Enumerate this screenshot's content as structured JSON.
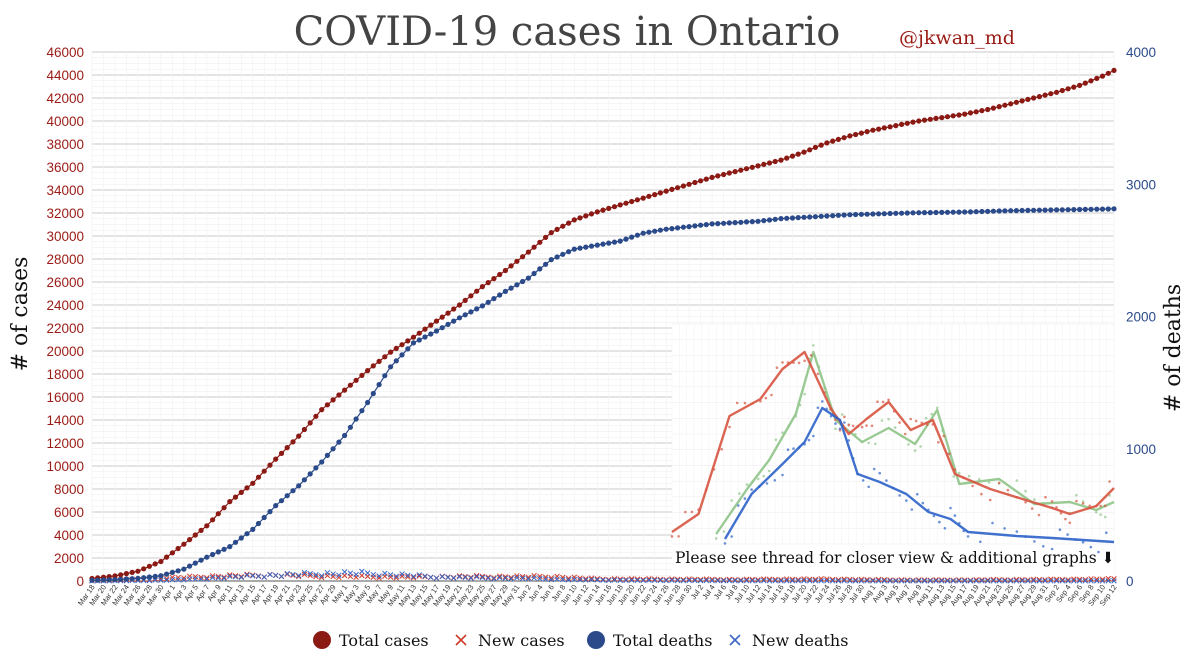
{
  "chart_data": {
    "type": "line",
    "title": "COVID-19 cases in Ontario",
    "author_handle": "@jkwan_md",
    "ylabel": "# of cases",
    "y2label": "# of deaths",
    "ylim": [
      0,
      46000
    ],
    "y2lim": [
      0,
      4000
    ],
    "yticks": [
      "0",
      "2000",
      "4000",
      "6000",
      "8000",
      "10000",
      "12000",
      "14000",
      "16000",
      "18000",
      "20000",
      "22000",
      "24000",
      "26000",
      "28000",
      "30000",
      "32000",
      "34000",
      "36000",
      "38000",
      "40000",
      "42000",
      "44000",
      "46000"
    ],
    "y2ticks": [
      "0",
      "1000",
      "2000",
      "3000",
      "4000"
    ],
    "x_start": "2020-03-18",
    "x_end": "2020-09-12",
    "xticks": [
      "Mar 18",
      "Mar 20",
      "Mar 22",
      "Mar 24",
      "Mar 26",
      "Mar 28",
      "Mar 30",
      "Apr 1",
      "Apr 3",
      "Apr 5",
      "Apr 7",
      "Apr 9",
      "Apr 11",
      "Apr 13",
      "Apr 15",
      "Apr 17",
      "Apr 19",
      "Apr 21",
      "Apr 23",
      "Apr 25",
      "Apr 27",
      "Apr 29",
      "May 1",
      "May 3",
      "May 5",
      "May 7",
      "May 9",
      "May 11",
      "May 13",
      "May 15",
      "May 17",
      "May 19",
      "May 21",
      "May 23",
      "May 25",
      "May 27",
      "May 29",
      "May 31",
      "Jun 2",
      "Jun 4",
      "Jun 6",
      "Jun 8",
      "Jun 10",
      "Jun 12",
      "Jun 14",
      "Jun 16",
      "Jun 18",
      "Jun 20",
      "Jun 22",
      "Jun 24",
      "Jun 26",
      "Jun 28",
      "Jun 30",
      "Jul 2",
      "Jul 4",
      "Jul 6",
      "Jul 8",
      "Jul 10",
      "Jul 12",
      "Jul 14",
      "Jul 16",
      "Jul 18",
      "Jul 20",
      "Jul 22",
      "Jul 24",
      "Jul 26",
      "Jul 28",
      "Jul 30",
      "Aug 1",
      "Aug 3",
      "Aug 5",
      "Aug 7",
      "Aug 9",
      "Aug 11",
      "Aug 13",
      "Aug 15",
      "Aug 17",
      "Aug 19",
      "Aug 21",
      "Aug 23",
      "Aug 25",
      "Aug 27",
      "Aug 29",
      "Aug 31",
      "Sep 2",
      "Sep 4",
      "Sep 6",
      "Sep 8",
      "Sep 10",
      "Sep 12"
    ],
    "series": [
      {
        "name": "Total cases",
        "axis": "left",
        "color": "#8b1a14",
        "marker": "circle",
        "points": [
          [
            "Mar 18",
            220
          ],
          [
            "Mar 22",
            440
          ],
          [
            "Mar 26",
            850
          ],
          [
            "Mar 30",
            1700
          ],
          [
            "Apr 3",
            3200
          ],
          [
            "Apr 7",
            4800
          ],
          [
            "Apr 11",
            6900
          ],
          [
            "Apr 15",
            8500
          ],
          [
            "Apr 19",
            10600
          ],
          [
            "Apr 23",
            12600
          ],
          [
            "Apr 27",
            14900
          ],
          [
            "May 1",
            16600
          ],
          [
            "May 5",
            18300
          ],
          [
            "May 9",
            19900
          ],
          [
            "May 13",
            21200
          ],
          [
            "May 17",
            22600
          ],
          [
            "May 21",
            24000
          ],
          [
            "May 25",
            25600
          ],
          [
            "May 29",
            27000
          ],
          [
            "Jun 2",
            28600
          ],
          [
            "Jun 6",
            30300
          ],
          [
            "Jun 10",
            31400
          ],
          [
            "Jun 14",
            32100
          ],
          [
            "Jun 18",
            32700
          ],
          [
            "Jun 22",
            33300
          ],
          [
            "Jun 26",
            33900
          ],
          [
            "Jun 30",
            34500
          ],
          [
            "Jul 4",
            35100
          ],
          [
            "Jul 8",
            35600
          ],
          [
            "Jul 12",
            36100
          ],
          [
            "Jul 16",
            36600
          ],
          [
            "Jul 20",
            37300
          ],
          [
            "Jul 24",
            38100
          ],
          [
            "Jul 28",
            38700
          ],
          [
            "Aug 1",
            39200
          ],
          [
            "Aug 5",
            39600
          ],
          [
            "Aug 9",
            40000
          ],
          [
            "Aug 13",
            40300
          ],
          [
            "Aug 17",
            40600
          ],
          [
            "Aug 21",
            41000
          ],
          [
            "Aug 25",
            41500
          ],
          [
            "Aug 29",
            42000
          ],
          [
            "Sep 2",
            42500
          ],
          [
            "Sep 6",
            43100
          ],
          [
            "Sep 10",
            43900
          ],
          [
            "Sep 12",
            44400
          ]
        ]
      },
      {
        "name": "Total deaths",
        "axis": "right",
        "color": "#2b4a8a",
        "marker": "circle",
        "points": [
          [
            "Mar 18",
            5
          ],
          [
            "Mar 22",
            10
          ],
          [
            "Mar 26",
            20
          ],
          [
            "Mar 30",
            40
          ],
          [
            "Apr 3",
            90
          ],
          [
            "Apr 7",
            180
          ],
          [
            "Apr 11",
            260
          ],
          [
            "Apr 15",
            390
          ],
          [
            "Apr 19",
            570
          ],
          [
            "Apr 23",
            720
          ],
          [
            "Apr 27",
            900
          ],
          [
            "May 1",
            1100
          ],
          [
            "May 5",
            1350
          ],
          [
            "May 9",
            1620
          ],
          [
            "May 13",
            1800
          ],
          [
            "May 17",
            1890
          ],
          [
            "May 21",
            1990
          ],
          [
            "May 25",
            2080
          ],
          [
            "May 29",
            2190
          ],
          [
            "Jun 2",
            2290
          ],
          [
            "Jun 6",
            2430
          ],
          [
            "Jun 10",
            2510
          ],
          [
            "Jun 14",
            2540
          ],
          [
            "Jun 18",
            2570
          ],
          [
            "Jun 22",
            2630
          ],
          [
            "Jun 26",
            2660
          ],
          [
            "Jun 30",
            2680
          ],
          [
            "Jul 4",
            2700
          ],
          [
            "Jul 8",
            2710
          ],
          [
            "Jul 12",
            2720
          ],
          [
            "Jul 16",
            2740
          ],
          [
            "Jul 20",
            2750
          ],
          [
            "Jul 24",
            2760
          ],
          [
            "Jul 28",
            2770
          ],
          [
            "Aug 1",
            2775
          ],
          [
            "Aug 5",
            2780
          ],
          [
            "Aug 9",
            2785
          ],
          [
            "Aug 13",
            2787
          ],
          [
            "Aug 17",
            2790
          ],
          [
            "Aug 21",
            2795
          ],
          [
            "Aug 25",
            2800
          ],
          [
            "Aug 29",
            2803
          ],
          [
            "Sep 2",
            2806
          ],
          [
            "Sep 6",
            2809
          ],
          [
            "Sep 10",
            2812
          ],
          [
            "Sep 12",
            2814
          ]
        ]
      },
      {
        "name": "New cases",
        "axis": "left",
        "color": "#d23a28",
        "marker": "x",
        "points": [
          [
            "Mar 18",
            50
          ],
          [
            "Mar 26",
            120
          ],
          [
            "Apr 3",
            320
          ],
          [
            "Apr 11",
            450
          ],
          [
            "Apr 19",
            520
          ],
          [
            "Apr 27",
            430
          ],
          [
            "May 5",
            380
          ],
          [
            "May 13",
            340
          ],
          [
            "May 21",
            380
          ],
          [
            "May 29",
            380
          ],
          [
            "Jun 6",
            380
          ],
          [
            "Jun 14",
            180
          ],
          [
            "Jun 22",
            160
          ],
          [
            "Jun 30",
            150
          ],
          [
            "Jul 8",
            120
          ],
          [
            "Jul 16",
            150
          ],
          [
            "Jul 24",
            160
          ],
          [
            "Aug 1",
            110
          ],
          [
            "Aug 9",
            80
          ],
          [
            "Aug 17",
            90
          ],
          [
            "Aug 25",
            110
          ],
          [
            "Sep 2",
            130
          ],
          [
            "Sep 12",
            180
          ]
        ]
      },
      {
        "name": "New deaths",
        "axis": "right",
        "color": "#3a66c4",
        "marker": "x",
        "points": [
          [
            "Mar 18",
            1
          ],
          [
            "Mar 26",
            3
          ],
          [
            "Apr 3",
            10
          ],
          [
            "Apr 11",
            30
          ],
          [
            "Apr 19",
            45
          ],
          [
            "Apr 27",
            55
          ],
          [
            "May 3",
            60
          ],
          [
            "May 9",
            50
          ],
          [
            "May 17",
            30
          ],
          [
            "May 25",
            25
          ],
          [
            "Jun 2",
            20
          ],
          [
            "Jun 10",
            10
          ],
          [
            "Jun 18",
            6
          ],
          [
            "Jun 26",
            5
          ],
          [
            "Jul 4",
            3
          ],
          [
            "Jul 12",
            2
          ],
          [
            "Jul 20",
            2
          ],
          [
            "Aug 1",
            1
          ],
          [
            "Aug 13",
            1
          ],
          [
            "Aug 25",
            1
          ],
          [
            "Sep 12",
            1
          ]
        ]
      }
    ],
    "inset": {
      "description_note": "Please see thread for closer view & additional graphs",
      "note_arrow": "⬇",
      "y2ticks_shared": [
        "1000",
        "2000"
      ]
    },
    "legend": {
      "position": "bottom",
      "entries": [
        {
          "label": "Total cases",
          "marker": "circle",
          "color": "#8b1a14"
        },
        {
          "label": "New cases",
          "marker": "x",
          "color": "#d23a28"
        },
        {
          "label": "Total deaths",
          "marker": "circle",
          "color": "#2b4a8a"
        },
        {
          "label": "New deaths",
          "marker": "x",
          "color": "#3a66c4"
        }
      ]
    },
    "grid": true
  }
}
